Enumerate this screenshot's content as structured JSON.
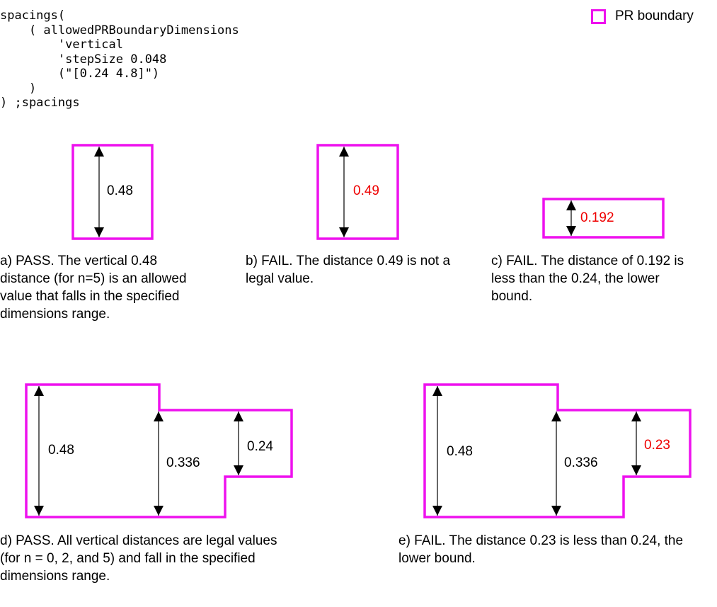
{
  "code": {
    "lines": [
      "spacings(",
      "    ( allowedPRBoundaryDimensions",
      "        'vertical",
      "        'stepSize 0.048",
      "        (\"[0.24 4.8]\")",
      "    )",
      ") ;spacings"
    ]
  },
  "legend": {
    "label": "PR boundary",
    "color": "#ee11ee"
  },
  "colors": {
    "boundary": "#ee11ee",
    "fail_label": "#ee0000",
    "normal_label": "#000000"
  },
  "examples": {
    "a": {
      "measurements": [
        {
          "label": "0.48",
          "fail": false
        }
      ],
      "caption": "a) PASS. The vertical 0.48\ndistance (for n=5) is an allowed\nvalue that falls in the specified\ndimensions range."
    },
    "b": {
      "measurements": [
        {
          "label": "0.49",
          "fail": true
        }
      ],
      "caption": "b) FAIL. The distance 0.49 is not a\nlegal value."
    },
    "c": {
      "measurements": [
        {
          "label": "0.192",
          "fail": true
        }
      ],
      "caption": "c) FAIL. The distance of 0.192 is\nless than the 0.24, the lower\nbound."
    },
    "d": {
      "measurements": [
        {
          "label": "0.48",
          "fail": false
        },
        {
          "label": "0.336",
          "fail": false
        },
        {
          "label": "0.24",
          "fail": false
        }
      ],
      "caption": "d) PASS. All vertical distances are legal values\n(for n = 0, 2, and 5) and fall in the specified\ndimensions range."
    },
    "e": {
      "measurements": [
        {
          "label": "0.48",
          "fail": false
        },
        {
          "label": "0.336",
          "fail": false
        },
        {
          "label": "0.23",
          "fail": true
        }
      ],
      "caption": "e) FAIL. The distance 0.23 is less than 0.24, the\nlower bound."
    }
  }
}
